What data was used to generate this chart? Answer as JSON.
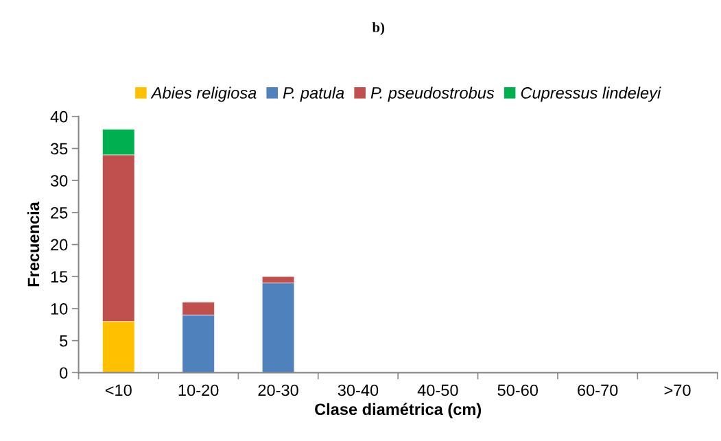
{
  "chart_data": {
    "type": "bar",
    "title": "b)",
    "xlabel": "Clase diamétrica (cm)",
    "ylabel": "Frecuencia",
    "categories": [
      "<10",
      "10-20",
      "20-30",
      "30-40",
      "40-50",
      "50-60",
      "60-70",
      ">70"
    ],
    "series": [
      {
        "name": "Abies religiosa",
        "color": "#ffc000",
        "values": [
          8,
          null,
          null,
          null,
          null,
          null,
          null,
          null
        ]
      },
      {
        "name": "P. patula",
        "color": "#4f81bd",
        "values": [
          null,
          9,
          14,
          null,
          null,
          null,
          null,
          null
        ]
      },
      {
        "name": "P. pseudostrobus",
        "color": "#c0504d",
        "values": [
          26,
          2,
          1,
          null,
          null,
          null,
          null,
          null
        ]
      },
      {
        "name": "Cupressus lindeleyi",
        "color": "#00b050",
        "values": [
          4,
          null,
          null,
          null,
          null,
          null,
          null,
          null
        ]
      }
    ],
    "stacked": true,
    "ylim": [
      0,
      40
    ],
    "yticks": [
      0,
      5,
      10,
      15,
      20,
      25,
      30,
      35,
      40
    ],
    "grid": false,
    "legend": "top"
  }
}
